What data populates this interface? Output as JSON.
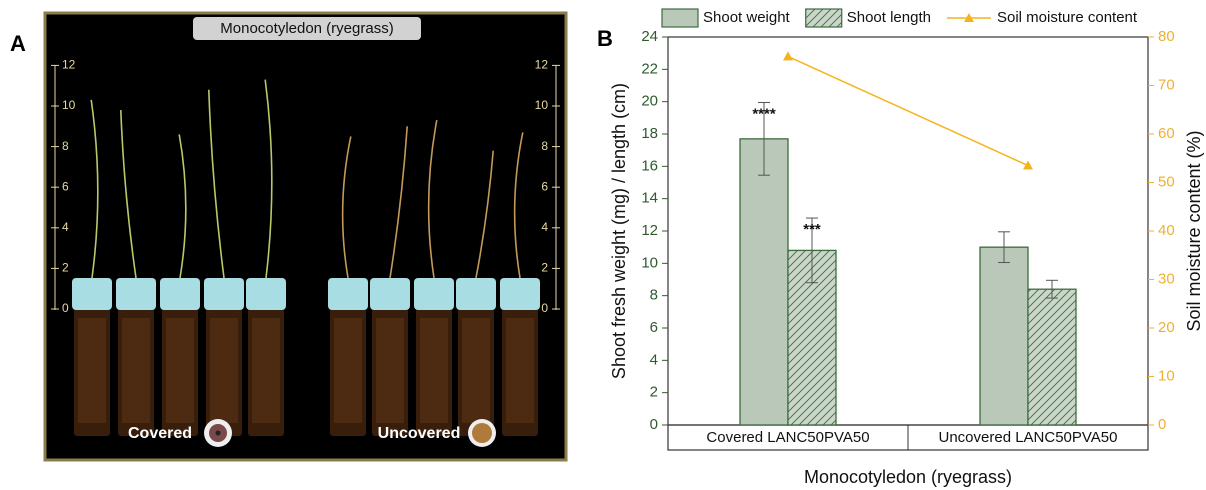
{
  "photo": {
    "panel_label": "A",
    "title": "Monocotyledon (ryegrass)",
    "ruler_ticks": [
      0,
      2,
      4,
      6,
      8,
      10,
      12
    ],
    "labels": [
      "Covered",
      "Uncovered"
    ]
  },
  "chart_data": {
    "type": "bar",
    "panel_label": "B",
    "x_label": "Monocotyledon (ryegrass)",
    "y_label": "Shoot fresh weight (mg) / length (cm)",
    "y2_label": "Soil moisture content (%)",
    "categories": [
      "Covered LANC50PVA50",
      "Uncovered LANC50PVA50"
    ],
    "series": [
      {
        "name": "Shoot weight",
        "type": "bar",
        "color": "#b9c8b9",
        "edgecolor": "#3d6b3d",
        "values": [
          17.7,
          11.0
        ],
        "errors": [
          2.25,
          0.95
        ],
        "significance": [
          "****",
          null
        ]
      },
      {
        "name": "Shoot length",
        "type": "bar",
        "hatch": true,
        "color": "#c9d6c9",
        "edgecolor": "#3d6b3d",
        "values": [
          10.8,
          8.4
        ],
        "errors": [
          2.0,
          0.55
        ],
        "significance": [
          "***",
          null
        ]
      },
      {
        "name": "Soil moisture content",
        "type": "line",
        "axis": "y2",
        "color": "#f5b31b",
        "values": [
          76,
          53.5
        ]
      }
    ],
    "ylim": [
      0,
      24
    ],
    "yticks": [
      0,
      2,
      4,
      6,
      8,
      10,
      12,
      14,
      16,
      18,
      20,
      22,
      24
    ],
    "y2lim": [
      0,
      80
    ],
    "y2ticks": [
      0,
      10,
      20,
      30,
      40,
      50,
      60,
      70,
      80
    ],
    "legend": "top"
  }
}
